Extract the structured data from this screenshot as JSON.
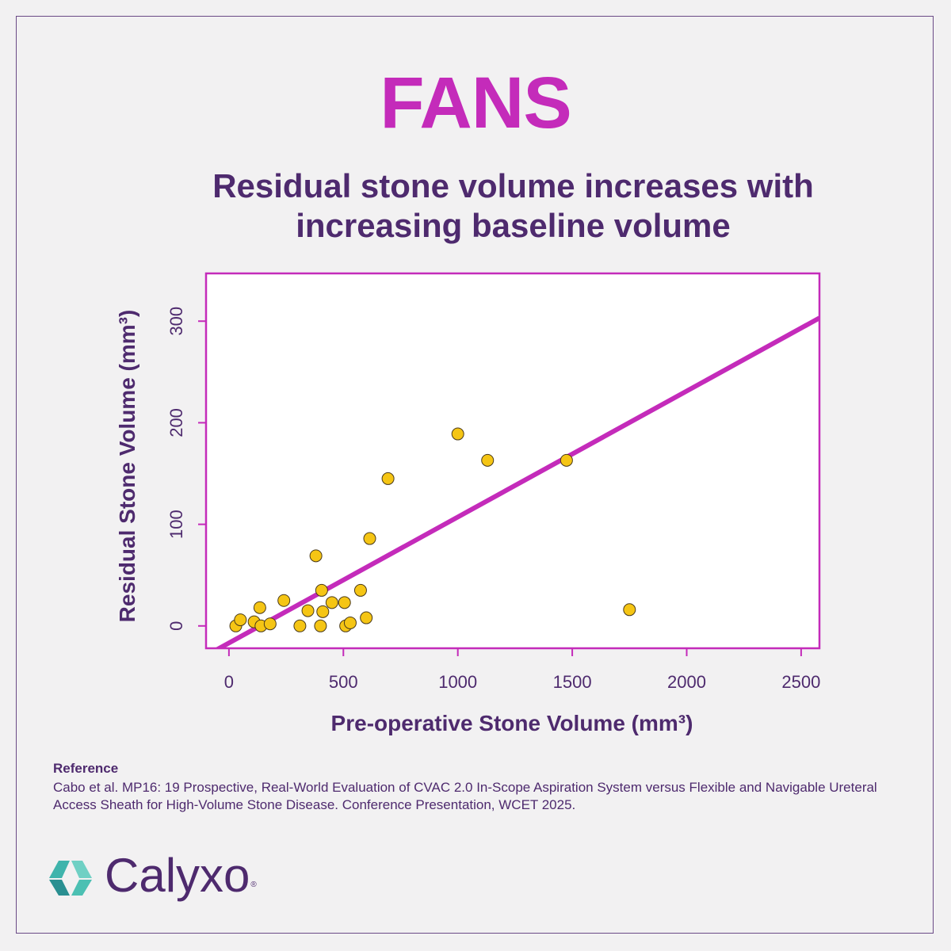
{
  "header": {
    "title": "FANS",
    "subtitle": "Residual stone volume increases with increasing baseline volume"
  },
  "colors": {
    "title": "#c42bba",
    "text": "#4e2a6e",
    "axis": "#c42bba",
    "point_fill": "#f5c514",
    "point_stroke": "#4a3a1a",
    "logo_teal": "#3fb4ac"
  },
  "chart_data": {
    "type": "scatter",
    "title": "",
    "xlabel": "Pre-operative  Stone Volume (mm³)",
    "ylabel": "Residual Stone Volume (mm³)",
    "xlim": [
      -100,
      2580
    ],
    "ylim": [
      -22,
      347
    ],
    "x_ticks": [
      0,
      500,
      1000,
      1500,
      2000,
      2500
    ],
    "y_ticks": [
      0,
      100,
      200,
      300
    ],
    "x_tick_labels": [
      "0",
      "500",
      "1000",
      "1500",
      "2000",
      "2500"
    ],
    "y_tick_labels": [
      "0",
      "100",
      "200",
      "300"
    ],
    "grid": false,
    "points": [
      {
        "x": 30,
        "y": 0
      },
      {
        "x": 50,
        "y": 6
      },
      {
        "x": 110,
        "y": 4
      },
      {
        "x": 135,
        "y": 18
      },
      {
        "x": 140,
        "y": 0
      },
      {
        "x": 180,
        "y": 2
      },
      {
        "x": 240,
        "y": 25
      },
      {
        "x": 310,
        "y": 0
      },
      {
        "x": 345,
        "y": 15
      },
      {
        "x": 380,
        "y": 69
      },
      {
        "x": 400,
        "y": 0
      },
      {
        "x": 405,
        "y": 35
      },
      {
        "x": 410,
        "y": 14
      },
      {
        "x": 450,
        "y": 23
      },
      {
        "x": 505,
        "y": 23
      },
      {
        "x": 510,
        "y": 0
      },
      {
        "x": 530,
        "y": 3
      },
      {
        "x": 575,
        "y": 35
      },
      {
        "x": 600,
        "y": 8
      },
      {
        "x": 615,
        "y": 86
      },
      {
        "x": 695,
        "y": 145
      },
      {
        "x": 1000,
        "y": 189
      },
      {
        "x": 1130,
        "y": 163
      },
      {
        "x": 1475,
        "y": 163
      },
      {
        "x": 1750,
        "y": 16
      }
    ],
    "fit_line": {
      "intercept": -16.8,
      "slope": 0.124
    }
  },
  "reference": {
    "heading": "Reference",
    "text": "Cabo et al. MP16: 19 Prospective, Real-World Evaluation of CVAC 2.0 In-Scope Aspiration System versus Flexible and Navigable Ureteral Access Sheath for High-Volume Stone Disease. Conference Presentation, WCET 2025."
  },
  "brand": {
    "name": "Calyxo",
    "mark": "®"
  }
}
